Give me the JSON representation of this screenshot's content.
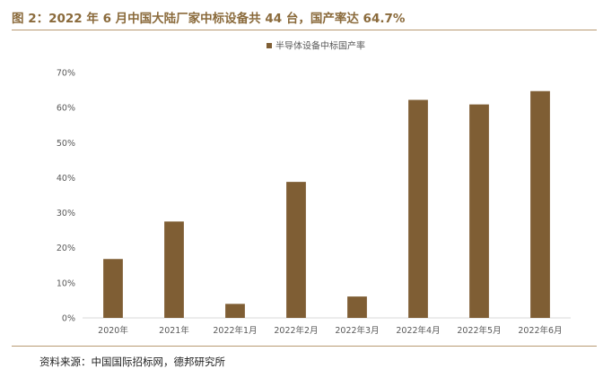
{
  "figure": {
    "title": "图 2：2022 年 6 月中国大陆厂家中标设备共 44 台，国产率达 64.7%",
    "source": "资料来源：中国国际招标网，德邦研究所"
  },
  "colors": {
    "bar": "#7f5e34",
    "accent": "#8a6a3b",
    "rule": "#b89a72",
    "axis": "#d9d9d9"
  },
  "chart_data": {
    "type": "bar",
    "categories": [
      "2020年",
      "2021年",
      "2022年1月",
      "2022年2月",
      "2022年3月",
      "2022年4月",
      "2022年5月",
      "2022年6月"
    ],
    "series": [
      {
        "name": "半导体设备中标国产率",
        "values": [
          16.8,
          27.5,
          4.0,
          38.8,
          6.1,
          62.2,
          60.9,
          64.7
        ]
      }
    ],
    "ylim": [
      0,
      70
    ],
    "yticks": [
      "0%",
      "10%",
      "20%",
      "30%",
      "40%",
      "50%",
      "60%",
      "70%"
    ],
    "legend": "top-center",
    "grid": false
  }
}
